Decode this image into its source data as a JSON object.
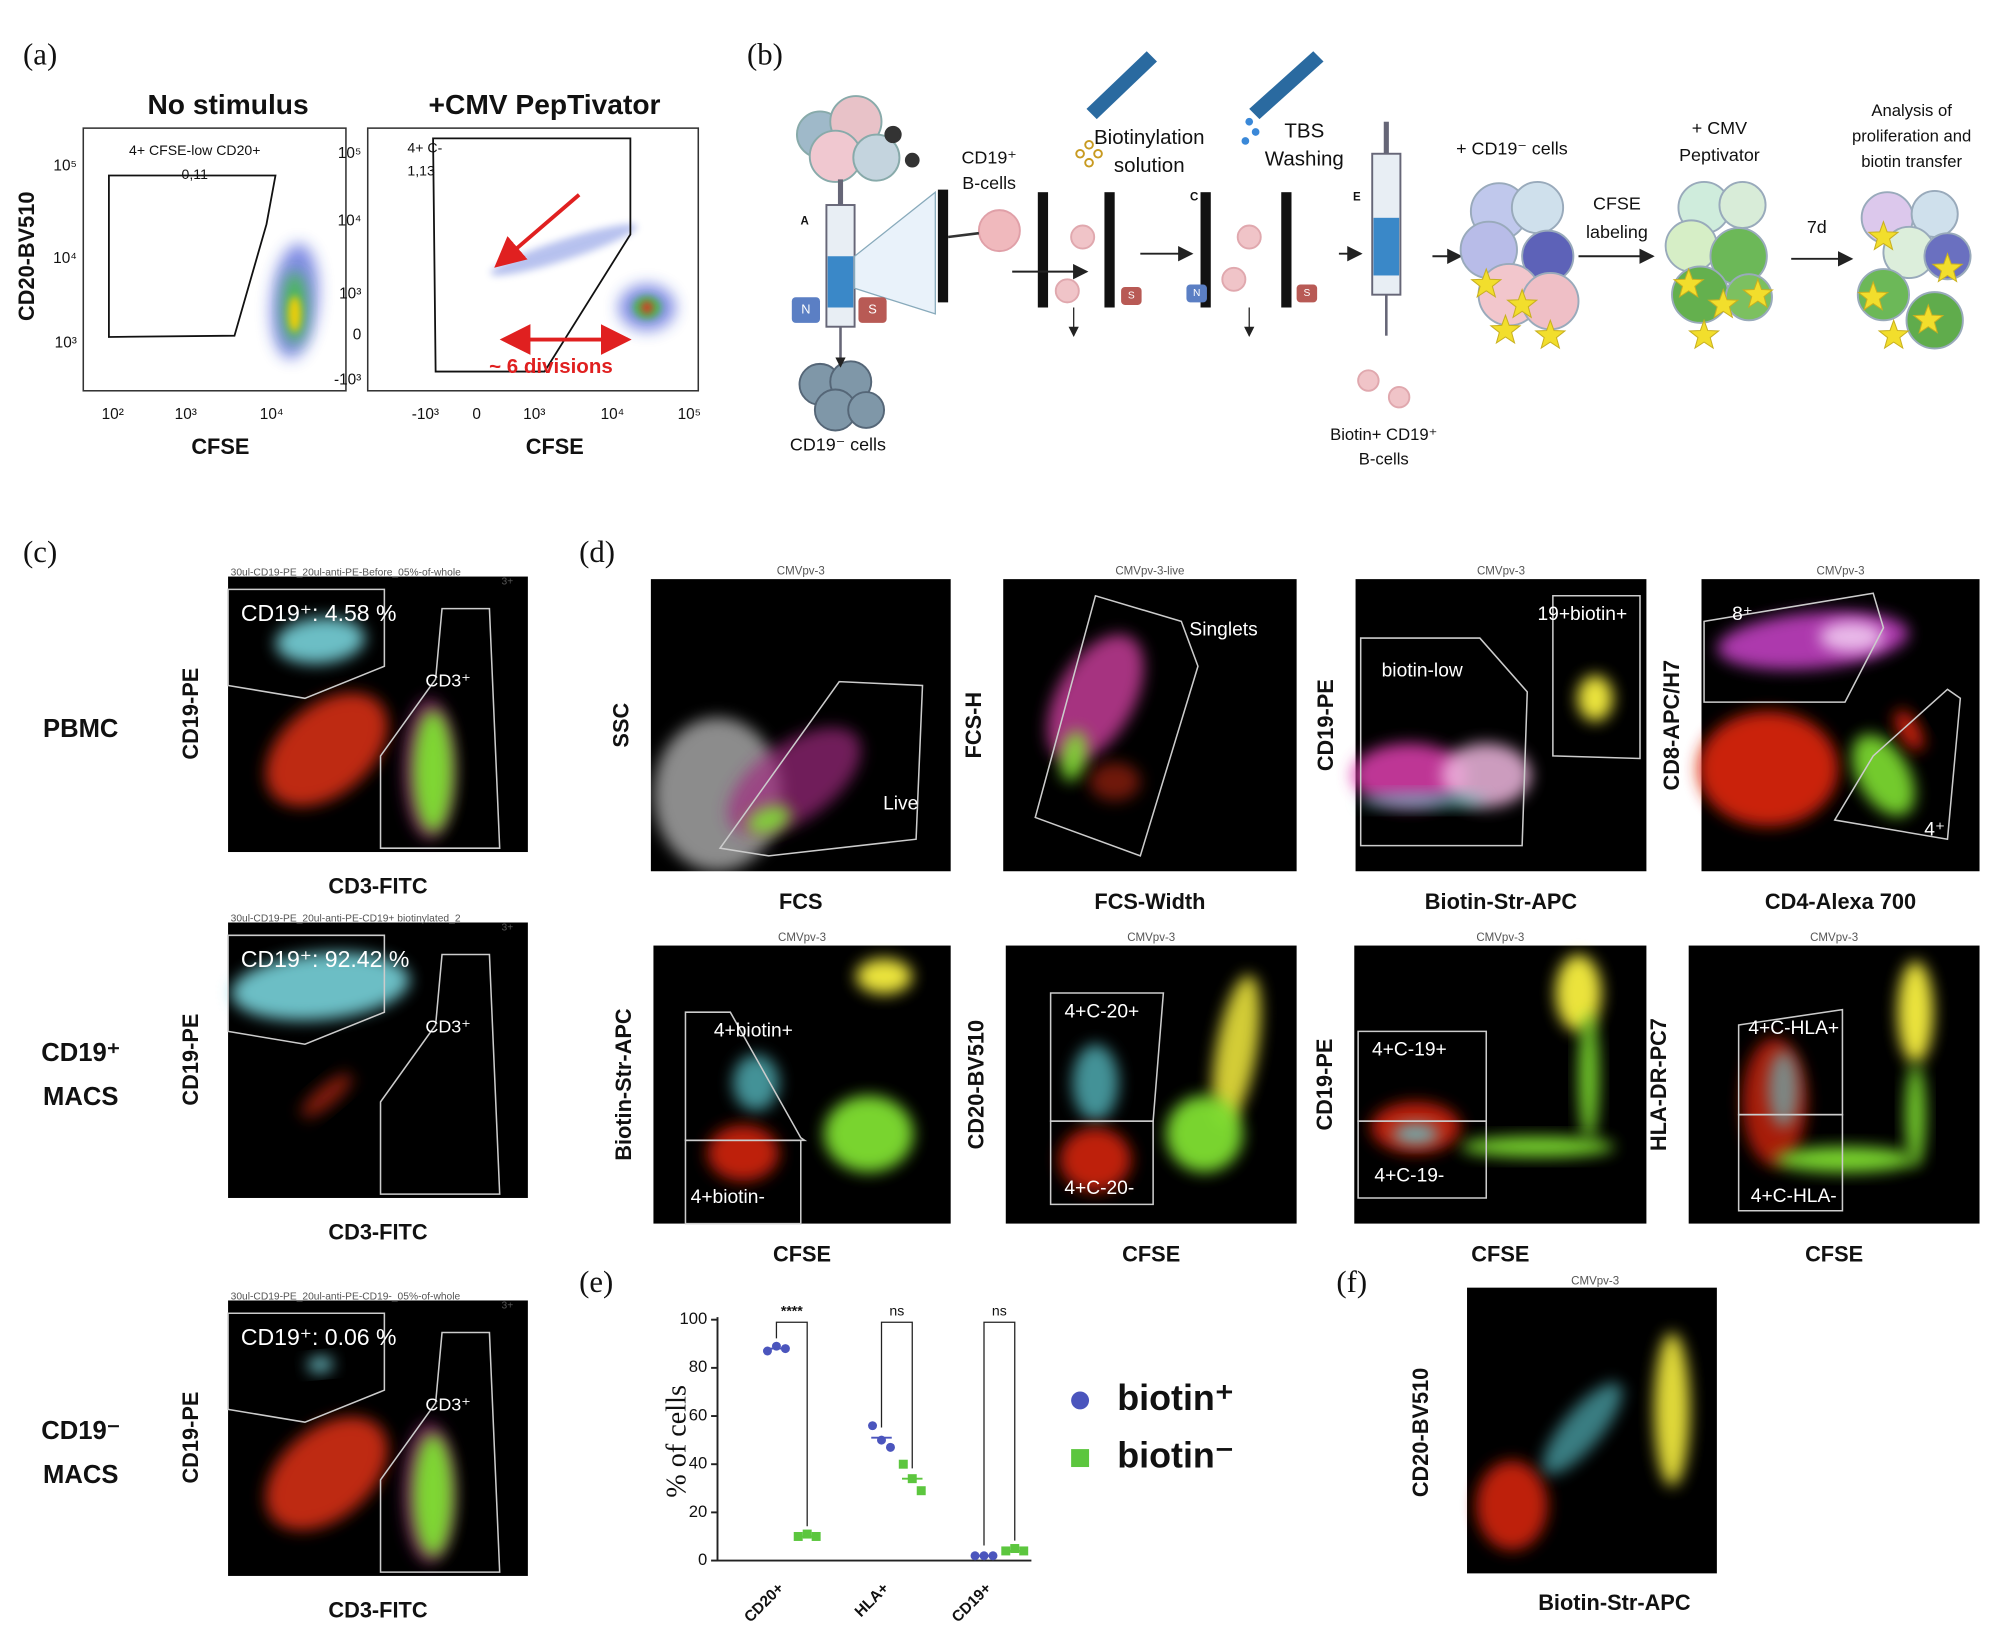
{
  "a": {
    "label": "(a)",
    "plots": [
      {
        "title": "No stimulus",
        "y_label": "CD20-BV510",
        "x_label": "CFSE",
        "gate_name": "4+ CFSE-low CD20+",
        "gate_value": "0,11",
        "yticks": [
          "10⁵",
          "10⁴",
          "10³"
        ],
        "xticks": [
          "10²",
          "10³",
          "10⁴"
        ]
      },
      {
        "title": "+CMV PepTivator",
        "x_label": "CFSE",
        "gate_name": "4+ C-",
        "gate_value": "1,13",
        "annotation": "~ 6 divisions",
        "yticks": [
          "10⁵",
          "10⁴",
          "10³",
          "0",
          "-10³"
        ],
        "xticks": [
          "-10³",
          "0",
          "10³",
          "10⁴",
          "10⁵"
        ]
      }
    ]
  },
  "b": {
    "label": "(b)",
    "cd19_pos": [
      "CD19⁺",
      "B-cells"
    ],
    "biotinylation": [
      "Biotinylation",
      "solution"
    ],
    "tbs": [
      "TBS",
      "Washing"
    ],
    "cd19_neg_in": "+ CD19⁻ cells",
    "cfse": [
      "CFSE",
      "labeling"
    ],
    "cmv": [
      "+ CMV",
      "Peptivator"
    ],
    "days": "7d",
    "analysis": [
      "Analysis of",
      "proliferation and",
      "biotin transfer"
    ],
    "cd19_neg_out": "CD19⁻ cells",
    "biotin_out": [
      "Biotin+ CD19⁺",
      "B-cells"
    ],
    "step_a": "A",
    "step_c": "C",
    "step_e": "E",
    "north": "N",
    "south": "S"
  },
  "c": {
    "label": "(c)",
    "y_label": "CD19-PE",
    "x_label": "CD3-FITC",
    "rows": [
      {
        "name": [
          "PBMC"
        ],
        "header": "30ul-CD19-PE_20ul-anti-PE-Before_05%-of-whole",
        "percent": "CD19⁺: 4.58 %",
        "gate": "CD3⁺",
        "corner": "3+"
      },
      {
        "name": [
          "CD19⁺",
          "MACS"
        ],
        "header": "30ul-CD19-PE_20ul-anti-PE-CD19+ biotinylated_2",
        "percent": "CD19⁺: 92.42 %",
        "gate": "CD3⁺",
        "corner": "3+"
      },
      {
        "name": [
          "CD19⁻",
          "MACS"
        ],
        "header": "30ul-CD19-PE_20ul-anti-PE-CD19-_05%-of-whole",
        "percent": "CD19⁺: 0.06 %",
        "gate": "CD3⁺",
        "corner": "3+"
      }
    ]
  },
  "d": {
    "label": "(d)",
    "plots": [
      {
        "title": "CMVpv-3",
        "y_label": "SSC",
        "x_label": "FCS",
        "gates": [
          "Live"
        ]
      },
      {
        "title": "CMVpv-3-live",
        "y_label": "FCS-H",
        "x_label": "FCS-Width",
        "gates": [
          "Singlets"
        ]
      },
      {
        "title": "CMVpv-3",
        "y_label": "CD19-PE",
        "x_label": "Biotin-Str-APC",
        "gates": [
          "biotin-low",
          "19+biotin+"
        ]
      },
      {
        "title": "CMVpv-3",
        "y_label": "CD8-APC/H7",
        "x_label": "CD4-Alexa 700",
        "gates": [
          "8⁺",
          "4⁺"
        ]
      },
      {
        "title": "CMVpv-3",
        "y_label": "Biotin-Str-APC",
        "x_label": "CFSE",
        "gates": [
          "4+biotin+",
          "4+biotin-"
        ]
      },
      {
        "title": "CMVpv-3",
        "y_label": "CD20-BV510",
        "x_label": "CFSE",
        "gates": [
          "4+C-20+",
          "4+C-20-"
        ]
      },
      {
        "title": "CMVpv-3",
        "y_label": "CD19-PE",
        "x_label": "CFSE",
        "gates": [
          "4+C-19+",
          "4+C-19-"
        ]
      },
      {
        "title": "CMVpv-3",
        "y_label": "HLA-DR-PC7",
        "x_label": "CFSE",
        "gates": [
          "4+C-HLA+",
          "4+C-HLA-"
        ]
      }
    ]
  },
  "e": {
    "label": "(e)",
    "y_label": "% of cells",
    "categories": [
      "CD20+",
      "HLA+",
      "CD19+"
    ],
    "ylim": [
      0,
      100
    ],
    "yticks": [
      0,
      20,
      40,
      60,
      80,
      100
    ],
    "significance": [
      "****",
      "ns",
      "ns"
    ],
    "series": [
      {
        "name": "biotin⁺",
        "color": "#4b55bd",
        "points": [
          [
            87,
            89,
            88
          ],
          [
            56,
            50,
            47
          ],
          [
            2,
            2,
            2
          ]
        ],
        "means": [
          88,
          51,
          2
        ]
      },
      {
        "name": "biotin⁻",
        "color": "#5cc63e",
        "points": [
          [
            10,
            11,
            10
          ],
          [
            40,
            34,
            29
          ],
          [
            4,
            5,
            4
          ]
        ],
        "means": [
          10,
          34,
          4
        ]
      }
    ]
  },
  "f": {
    "label": "(f)",
    "title": "CMVpv-3",
    "y_label": "CD20-BV510",
    "x_label": "Biotin-Str-APC"
  }
}
